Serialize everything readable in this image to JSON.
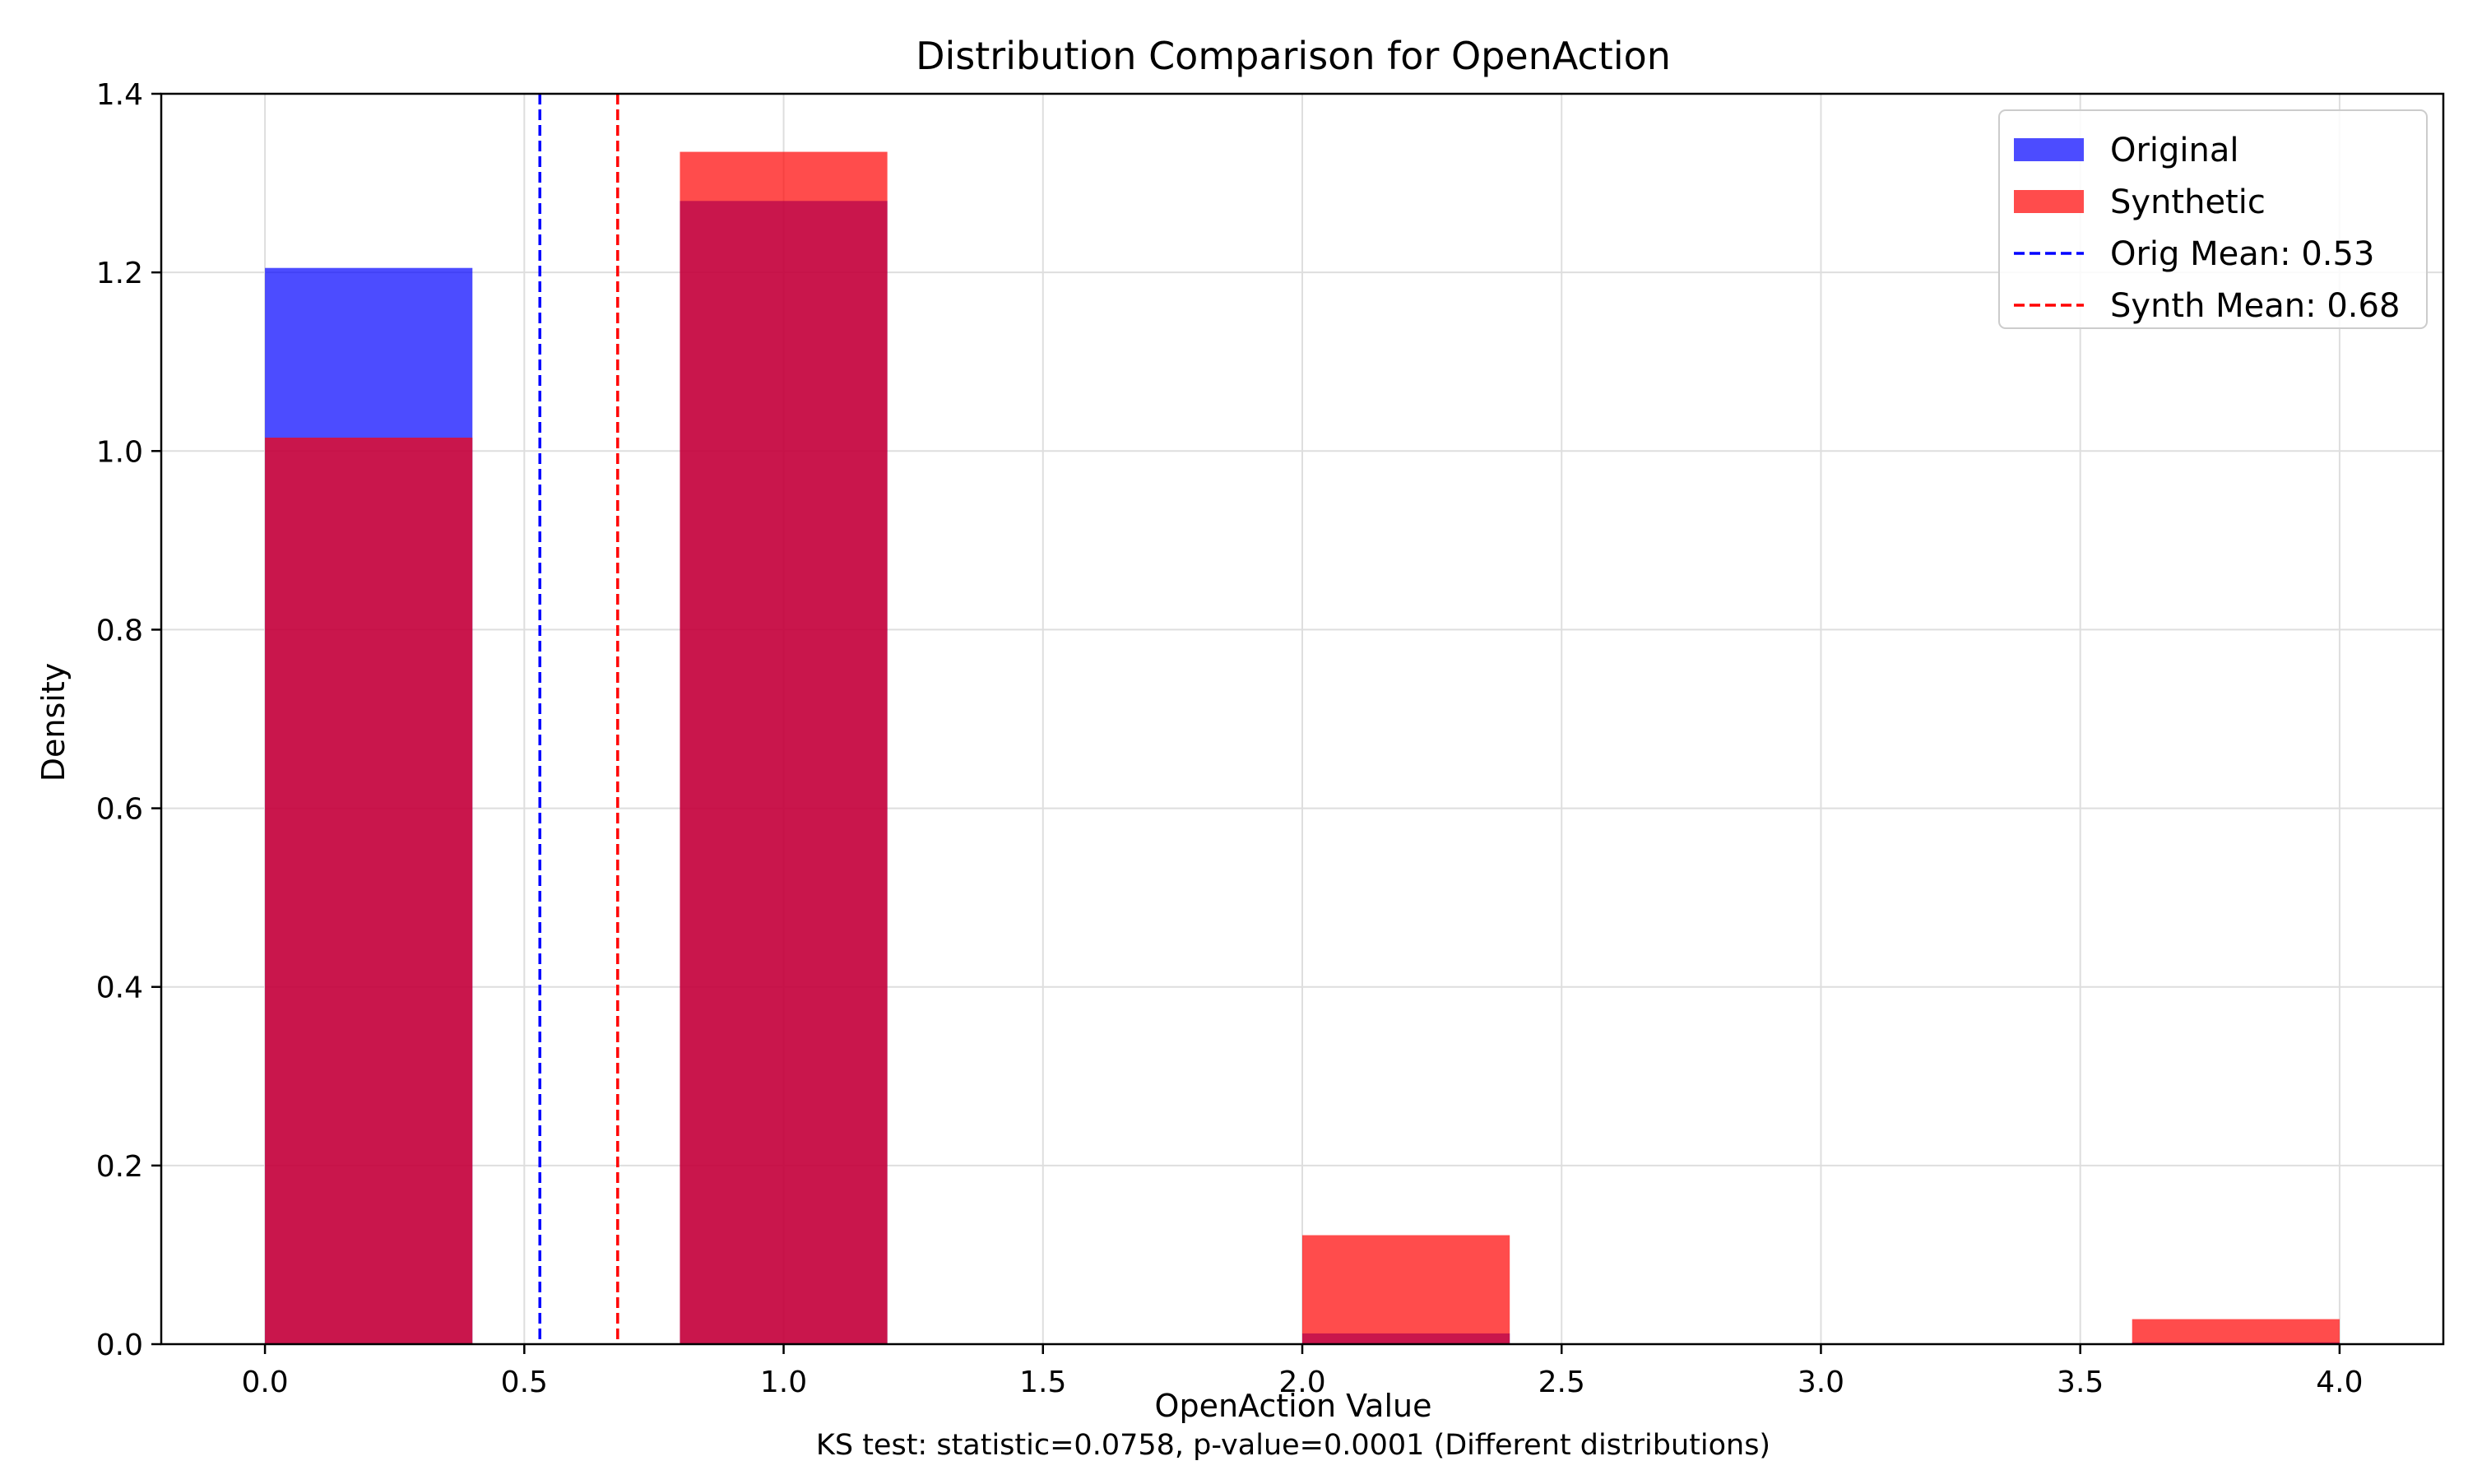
{
  "chart_data": {
    "type": "bar",
    "title": "Distribution Comparison for OpenAction",
    "xlabel": "OpenAction Value",
    "ylabel": "Density",
    "footnote": "KS test: statistic=0.0758, p-value=0.0001 (Different distributions)",
    "xlim": [
      -0.2,
      4.2
    ],
    "ylim": [
      0,
      1.4
    ],
    "xticks": [
      0.0,
      0.5,
      1.0,
      1.5,
      2.0,
      2.5,
      3.0,
      3.5,
      4.0
    ],
    "xtick_labels": [
      "0.0",
      "0.5",
      "1.0",
      "1.5",
      "2.0",
      "2.5",
      "3.0",
      "3.5",
      "4.0"
    ],
    "yticks": [
      0.0,
      0.2,
      0.4,
      0.6,
      0.8,
      1.0,
      1.2,
      1.4
    ],
    "ytick_labels": [
      "0.0",
      "0.2",
      "0.4",
      "0.6",
      "0.8",
      "1.0",
      "1.2",
      "1.4"
    ],
    "grid": true,
    "legend_position": "top-right",
    "bin_edges": [
      0.0,
      0.4,
      0.8,
      1.2,
      1.6,
      2.0,
      2.4,
      2.8,
      3.2,
      3.6,
      4.0
    ],
    "series": [
      {
        "name": "Original",
        "color": "#0000ff",
        "alpha": 0.7,
        "values": [
          1.205,
          0,
          1.28,
          0,
          0,
          0.012,
          0,
          0,
          0,
          0.002
        ]
      },
      {
        "name": "Synthetic",
        "color": "#ff0000",
        "alpha": 0.7,
        "values": [
          1.015,
          0,
          1.335,
          0,
          0,
          0.122,
          0,
          0,
          0,
          0.028
        ]
      }
    ],
    "mean_lines": [
      {
        "name": "Orig Mean: 0.53",
        "value": 0.53,
        "color": "#0000ff"
      },
      {
        "name": "Synth Mean: 0.68",
        "value": 0.68,
        "color": "#ff0000"
      }
    ]
  }
}
